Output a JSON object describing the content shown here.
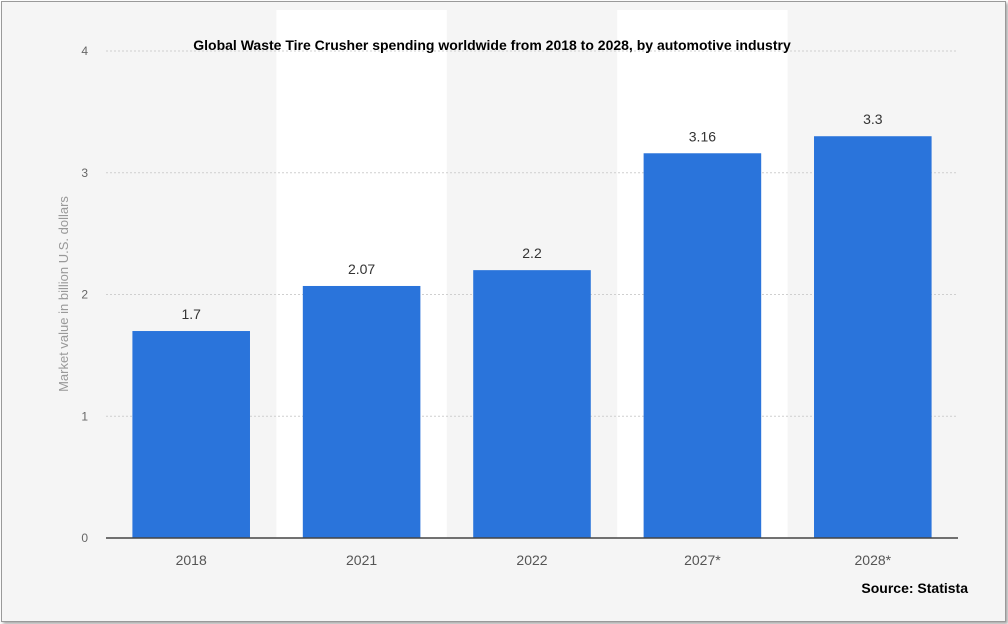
{
  "chart_data": {
    "type": "bar",
    "title": "Global Waste Tire Crusher spending worldwide from 2018 to 2028, by automotive industry",
    "ylabel": "Market value in billion U.S. dollars",
    "xlabel": "",
    "source": "Source: Statista",
    "categories": [
      "2018",
      "2021",
      "2022",
      "2027*",
      "2028*"
    ],
    "values": [
      1.7,
      2.07,
      2.2,
      3.16,
      3.3
    ],
    "value_labels": [
      "1.7",
      "2.07",
      "2.2",
      "3.16",
      "3.3"
    ],
    "ylim": [
      0,
      4
    ],
    "yticks": [
      "0",
      "1",
      "2",
      "3",
      "4"
    ],
    "grid": true,
    "legend": "none",
    "colors": {
      "bar": "#2a74db",
      "band": "#ffffff",
      "background": "#f5f5f5",
      "grid": "#cfcfcf",
      "axis": "#444444"
    }
  }
}
